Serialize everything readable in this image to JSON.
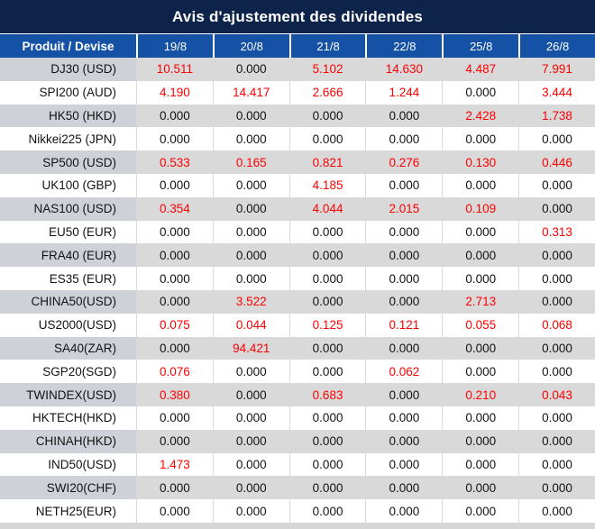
{
  "title": "Avis d'ajustement des dividendes",
  "table": {
    "product_header": "Produit / Devise",
    "date_columns": [
      "19/8",
      "20/8",
      "21/8",
      "22/8",
      "25/8",
      "26/8"
    ],
    "rows": [
      {
        "product": "DJ30 (USD)",
        "values": [
          "10.511",
          "0.000",
          "5.102",
          "14.630",
          "4.487",
          "7.991"
        ]
      },
      {
        "product": "SPI200 (AUD)",
        "values": [
          "4.190",
          "14.417",
          "2.666",
          "1.244",
          "0.000",
          "3.444"
        ]
      },
      {
        "product": "HK50 (HKD)",
        "values": [
          "0.000",
          "0.000",
          "0.000",
          "0.000",
          "2.428",
          "1.738"
        ]
      },
      {
        "product": "Nikkei225 (JPN)",
        "values": [
          "0.000",
          "0.000",
          "0.000",
          "0.000",
          "0.000",
          "0.000"
        ]
      },
      {
        "product": "SP500 (USD)",
        "values": [
          "0.533",
          "0.165",
          "0.821",
          "0.276",
          "0.130",
          "0.446"
        ]
      },
      {
        "product": "UK100 (GBP)",
        "values": [
          "0.000",
          "0.000",
          "4.185",
          "0.000",
          "0.000",
          "0.000"
        ]
      },
      {
        "product": "NAS100 (USD)",
        "values": [
          "0.354",
          "0.000",
          "4.044",
          "2.015",
          "0.109",
          "0.000"
        ]
      },
      {
        "product": "EU50 (EUR)",
        "values": [
          "0.000",
          "0.000",
          "0.000",
          "0.000",
          "0.000",
          "0.313"
        ]
      },
      {
        "product": "FRA40 (EUR)",
        "values": [
          "0.000",
          "0.000",
          "0.000",
          "0.000",
          "0.000",
          "0.000"
        ]
      },
      {
        "product": "ES35 (EUR)",
        "values": [
          "0.000",
          "0.000",
          "0.000",
          "0.000",
          "0.000",
          "0.000"
        ]
      },
      {
        "product": "CHINA50(USD)",
        "values": [
          "0.000",
          "3.522",
          "0.000",
          "0.000",
          "2.713",
          "0.000"
        ]
      },
      {
        "product": "US2000(USD)",
        "values": [
          "0.075",
          "0.044",
          "0.125",
          "0.121",
          "0.055",
          "0.068"
        ]
      },
      {
        "product": "SA40(ZAR)",
        "values": [
          "0.000",
          "94.421",
          "0.000",
          "0.000",
          "0.000",
          "0.000"
        ]
      },
      {
        "product": "SGP20(SGD)",
        "values": [
          "0.076",
          "0.000",
          "0.000",
          "0.062",
          "0.000",
          "0.000"
        ]
      },
      {
        "product": "TWINDEX(USD)",
        "values": [
          "0.380",
          "0.000",
          "0.683",
          "0.000",
          "0.210",
          "0.043"
        ]
      },
      {
        "product": "HKTECH(HKD)",
        "values": [
          "0.000",
          "0.000",
          "0.000",
          "0.000",
          "0.000",
          "0.000"
        ]
      },
      {
        "product": "CHINAH(HKD)",
        "values": [
          "0.000",
          "0.000",
          "0.000",
          "0.000",
          "0.000",
          "0.000"
        ]
      },
      {
        "product": "IND50(USD)",
        "values": [
          "1.473",
          "0.000",
          "0.000",
          "0.000",
          "0.000",
          "0.000"
        ]
      },
      {
        "product": "SWI20(CHF)",
        "values": [
          "0.000",
          "0.000",
          "0.000",
          "0.000",
          "0.000",
          "0.000"
        ]
      },
      {
        "product": "NETH25(EUR)",
        "values": [
          "0.000",
          "0.000",
          "0.000",
          "0.000",
          "0.000",
          "0.000"
        ]
      }
    ]
  },
  "colors": {
    "title_bg": "#0e2349",
    "header_bg": "#1552a5",
    "stripe_value_bg": "#d9d9d9",
    "stripe_product_bg": "#ced2d8",
    "nonzero_value": "#fe0000",
    "zero_value": "#121212",
    "header_text": "#ffffff"
  }
}
